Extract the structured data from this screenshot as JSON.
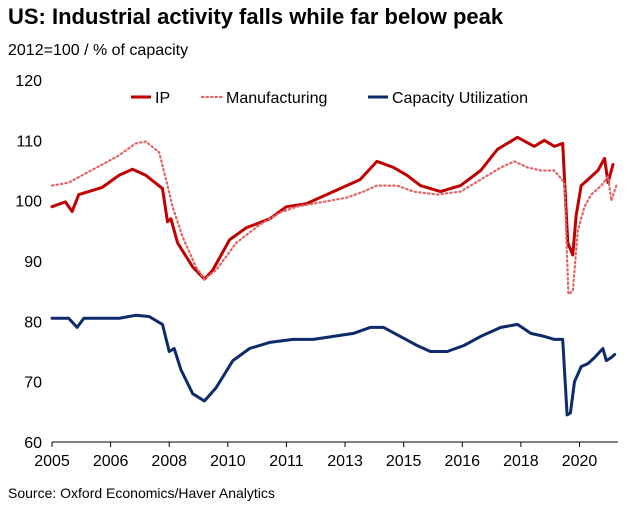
{
  "chart_data": {
    "type": "line",
    "title": "US: Industrial activity falls while far below peak",
    "subtitle": "2012=100 / % of capacity",
    "source": "Source: Oxford Economics/Haver Analytics",
    "xlim": [
      2005.0,
      2021.9
    ],
    "ylim": [
      60,
      120
    ],
    "y_ticks": [
      60,
      70,
      80,
      90,
      100,
      110,
      120
    ],
    "x_ticks": [
      {
        "value": 2005.0,
        "label": "2005"
      },
      {
        "value": 2006.75,
        "label": "2006"
      },
      {
        "value": 2008.5,
        "label": "2008"
      },
      {
        "value": 2010.25,
        "label": "2010"
      },
      {
        "value": 2012.0,
        "label": "2011"
      },
      {
        "value": 2013.75,
        "label": "2013"
      },
      {
        "value": 2015.5,
        "label": "2015"
      },
      {
        "value": 2017.25,
        "label": "2016"
      },
      {
        "value": 2019.0,
        "label": "2018"
      },
      {
        "value": 2020.75,
        "label": "2020"
      }
    ],
    "legend_position": "top-right",
    "series": [
      {
        "name": "IP",
        "color": "#c00000",
        "style": "solid",
        "x": [
          2005.0,
          2005.4,
          2005.6,
          2005.8,
          2006.5,
          2007.0,
          2007.4,
          2007.8,
          2008.3,
          2008.45,
          2008.55,
          2008.75,
          2009.2,
          2009.55,
          2009.8,
          2010.3,
          2010.8,
          2011.5,
          2012.0,
          2012.6,
          2013.0,
          2013.6,
          2014.2,
          2014.7,
          2015.2,
          2015.6,
          2016.0,
          2016.6,
          2017.2,
          2017.8,
          2018.3,
          2018.9,
          2019.4,
          2019.7,
          2020.0,
          2020.25,
          2020.4,
          2020.55,
          2020.65,
          2020.8,
          2021.0,
          2021.3,
          2021.5,
          2021.6,
          2021.75
        ],
        "values": [
          99.0,
          99.8,
          98.2,
          101.0,
          102.2,
          104.2,
          105.2,
          104.2,
          102.0,
          96.5,
          97.0,
          93.0,
          89.0,
          87.0,
          88.5,
          93.5,
          95.5,
          97.0,
          99.0,
          99.5,
          100.5,
          102.0,
          103.5,
          106.5,
          105.5,
          104.2,
          102.5,
          101.5,
          102.5,
          105.0,
          108.5,
          110.5,
          109.0,
          110.0,
          109.0,
          109.5,
          93.0,
          91.0,
          97.5,
          102.5,
          103.5,
          105.0,
          107.0,
          103.0,
          106.0
        ]
      },
      {
        "name": "Manufacturing",
        "color": "#e06666",
        "style": "dotted",
        "x": [
          2005.0,
          2005.5,
          2006.0,
          2006.5,
          2007.0,
          2007.5,
          2007.8,
          2008.2,
          2008.45,
          2008.6,
          2008.9,
          2009.3,
          2009.55,
          2009.9,
          2010.5,
          2011.2,
          2011.8,
          2012.3,
          2012.8,
          2013.3,
          2013.8,
          2014.3,
          2014.7,
          2015.3,
          2015.8,
          2016.5,
          2017.2,
          2017.8,
          2018.4,
          2018.8,
          2019.2,
          2019.6,
          2020.0,
          2020.3,
          2020.42,
          2020.55,
          2020.7,
          2020.9,
          2021.1,
          2021.4,
          2021.6,
          2021.7,
          2021.85
        ],
        "values": [
          102.5,
          103.0,
          104.5,
          106.0,
          107.5,
          109.5,
          109.8,
          108.0,
          102.5,
          99.0,
          94.0,
          89.0,
          87.0,
          88.5,
          93.0,
          96.0,
          98.0,
          99.0,
          99.5,
          100.0,
          100.5,
          101.5,
          102.5,
          102.5,
          101.5,
          101.0,
          101.5,
          103.5,
          105.5,
          106.5,
          105.5,
          105.0,
          105.0,
          103.0,
          84.5,
          85.0,
          95.0,
          99.0,
          101.0,
          102.5,
          104.0,
          100.0,
          102.5
        ]
      },
      {
        "name": "Capacity Utilization",
        "color": "#0d2a6b",
        "style": "solid",
        "x": [
          2005.0,
          2005.5,
          2005.75,
          2005.95,
          2006.5,
          2007.0,
          2007.5,
          2007.9,
          2008.3,
          2008.5,
          2008.65,
          2008.85,
          2009.2,
          2009.55,
          2009.9,
          2010.4,
          2010.9,
          2011.5,
          2012.2,
          2012.8,
          2013.4,
          2014.0,
          2014.5,
          2014.9,
          2015.4,
          2015.9,
          2016.3,
          2016.8,
          2017.3,
          2017.8,
          2018.4,
          2018.9,
          2019.3,
          2019.7,
          2020.0,
          2020.25,
          2020.38,
          2020.48,
          2020.6,
          2020.8,
          2021.0,
          2021.2,
          2021.45,
          2021.55,
          2021.7,
          2021.8
        ],
        "values": [
          80.5,
          80.5,
          79.0,
          80.5,
          80.5,
          80.5,
          81.0,
          80.8,
          79.5,
          75.0,
          75.5,
          72.0,
          68.0,
          66.8,
          69.0,
          73.5,
          75.5,
          76.5,
          77.0,
          77.0,
          77.5,
          78.0,
          79.0,
          79.0,
          77.5,
          76.0,
          75.0,
          75.0,
          76.0,
          77.5,
          79.0,
          79.5,
          78.0,
          77.5,
          77.0,
          77.0,
          64.5,
          64.8,
          70.0,
          72.5,
          73.0,
          74.0,
          75.5,
          73.5,
          74.0,
          74.5
        ]
      }
    ]
  }
}
